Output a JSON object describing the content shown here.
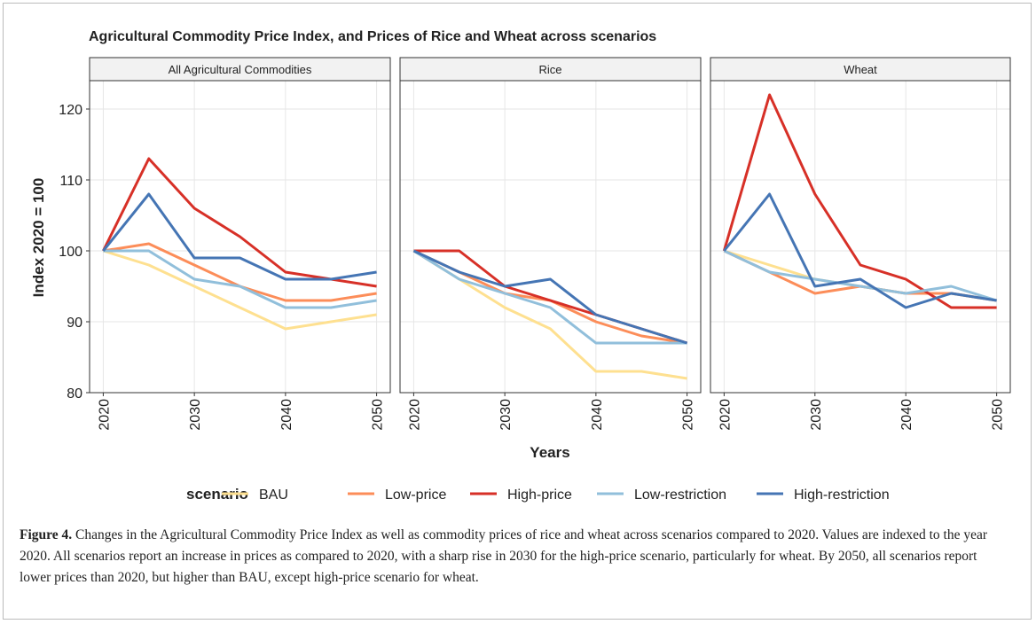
{
  "title": "Agricultural Commodity Price Index, and Prices of Rice and Wheat across scenarios",
  "x_label": "Years",
  "y_label": "Index 2020 = 100",
  "legend_title": "scenario",
  "caption": {
    "label": "Figure 4.",
    "text": "Changes in the Agricultural Commodity Price Index as well as commodity prices of rice and wheat across scenarios compared to 2020. Values are indexed to the year 2020. All scenarios report an increase in prices as compared to 2020, with a sharp rise in 2030 for the high-price scenario, particularly for wheat. By 2050, all scenarios report lower prices than 2020, but higher than BAU, except high-price scenario for wheat."
  },
  "chart_data": [
    {
      "type": "line",
      "title": "All Agricultural Commodities",
      "x": [
        2020,
        2025,
        2030,
        2035,
        2040,
        2045,
        2050
      ],
      "xlim": [
        2018.5,
        2051.5
      ],
      "xticks": [
        2020,
        2030,
        2040,
        2050
      ],
      "ylim": [
        80,
        124
      ],
      "yticks": [
        80,
        90,
        100,
        110,
        120
      ],
      "grid": true,
      "series": [
        {
          "name": "BAU",
          "color": "#fee090",
          "values": [
            100,
            98,
            95,
            92,
            89,
            90,
            91
          ]
        },
        {
          "name": "Low-price",
          "color": "#fc8d59",
          "values": [
            100,
            101,
            98,
            95,
            93,
            93,
            94
          ]
        },
        {
          "name": "High-price",
          "color": "#d73027",
          "values": [
            100,
            113,
            106,
            102,
            97,
            96,
            95
          ]
        },
        {
          "name": "Low-restriction",
          "color": "#91bfdb",
          "values": [
            100,
            100,
            96,
            95,
            92,
            92,
            93
          ]
        },
        {
          "name": "High-restriction",
          "color": "#4575b4",
          "values": [
            100,
            108,
            99,
            99,
            96,
            96,
            97
          ]
        }
      ]
    },
    {
      "type": "line",
      "title": "Rice",
      "x": [
        2020,
        2025,
        2030,
        2035,
        2040,
        2045,
        2050
      ],
      "xlim": [
        2018.5,
        2051.5
      ],
      "xticks": [
        2020,
        2030,
        2040,
        2050
      ],
      "ylim": [
        80,
        124
      ],
      "yticks": [
        80,
        90,
        100,
        110,
        120
      ],
      "grid": true,
      "series": [
        {
          "name": "BAU",
          "color": "#fee090",
          "values": [
            100,
            96,
            92,
            89,
            83,
            83,
            82
          ]
        },
        {
          "name": "Low-price",
          "color": "#fc8d59",
          "values": [
            100,
            97,
            94,
            93,
            90,
            88,
            87
          ]
        },
        {
          "name": "High-price",
          "color": "#d73027",
          "values": [
            100,
            100,
            95,
            93,
            91,
            89,
            87
          ]
        },
        {
          "name": "Low-restriction",
          "color": "#91bfdb",
          "values": [
            100,
            96,
            94,
            92,
            87,
            87,
            87
          ]
        },
        {
          "name": "High-restriction",
          "color": "#4575b4",
          "values": [
            100,
            97,
            95,
            96,
            91,
            89,
            87
          ]
        }
      ]
    },
    {
      "type": "line",
      "title": "Wheat",
      "x": [
        2020,
        2025,
        2030,
        2035,
        2040,
        2045,
        2050
      ],
      "xlim": [
        2018.5,
        2051.5
      ],
      "xticks": [
        2020,
        2030,
        2040,
        2050
      ],
      "ylim": [
        80,
        124
      ],
      "yticks": [
        80,
        90,
        100,
        110,
        120
      ],
      "grid": true,
      "series": [
        {
          "name": "BAU",
          "color": "#fee090",
          "values": [
            100,
            98,
            96,
            95,
            94,
            94,
            93
          ]
        },
        {
          "name": "Low-price",
          "color": "#fc8d59",
          "values": [
            100,
            97,
            94,
            95,
            94,
            94,
            93
          ]
        },
        {
          "name": "High-price",
          "color": "#d73027",
          "values": [
            100,
            122,
            108,
            98,
            96,
            92,
            92
          ]
        },
        {
          "name": "Low-restriction",
          "color": "#91bfdb",
          "values": [
            100,
            97,
            96,
            95,
            94,
            95,
            93
          ]
        },
        {
          "name": "High-restriction",
          "color": "#4575b4",
          "values": [
            100,
            108,
            95,
            96,
            92,
            94,
            93
          ]
        }
      ]
    }
  ]
}
